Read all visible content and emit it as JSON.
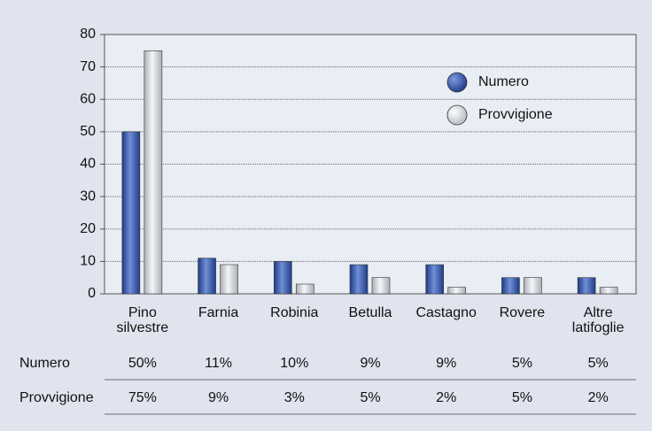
{
  "chart_data": {
    "type": "bar",
    "categories": [
      "Pino silvestre",
      "Farnia",
      "Robinia",
      "Betulla",
      "Castagno",
      "Rovere",
      "Altre latifoglie"
    ],
    "series": [
      {
        "name": "Numero",
        "color": "#3a5bb0",
        "values": [
          50,
          11,
          10,
          9,
          9,
          5,
          5
        ],
        "value_labels": [
          "50%",
          "11%",
          "10%",
          "9%",
          "9%",
          "5%",
          "5%"
        ]
      },
      {
        "name": "Provvigione",
        "color": "#d4d8dc",
        "values": [
          75,
          9,
          3,
          5,
          2,
          5,
          2
        ],
        "value_labels": [
          "75%",
          "9%",
          "3%",
          "5%",
          "2%",
          "5%",
          "2%"
        ]
      }
    ],
    "ylim": [
      0,
      80
    ],
    "yticks": [
      0,
      10,
      20,
      30,
      40,
      50,
      60,
      70,
      80
    ],
    "grid": true,
    "legend": "upper right"
  }
}
